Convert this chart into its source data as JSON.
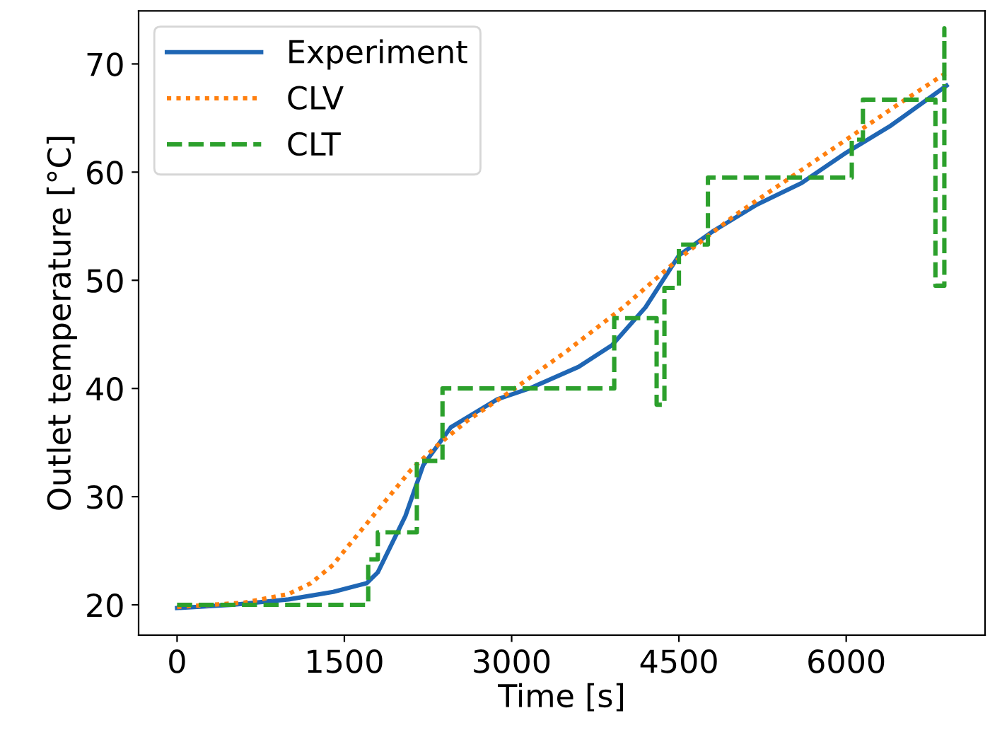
{
  "chart_data": {
    "type": "line",
    "xlabel": "Time [s]",
    "ylabel": "Outlet temperature [°C]",
    "xlim": [
      -345,
      7245
    ],
    "ylim": [
      17.2,
      74.9
    ],
    "xticks": [
      0,
      1500,
      3000,
      4500,
      6000
    ],
    "yticks": [
      20,
      30,
      40,
      50,
      60,
      70
    ],
    "grid": false,
    "legend": "top left",
    "series": [
      {
        "name": "Experiment",
        "color": "#1f66b4",
        "line_style": "solid",
        "x": [
          0,
          500,
          1000,
          1400,
          1700,
          1800,
          2047,
          2207,
          2454,
          2873,
          3160,
          3600,
          3900,
          4200,
          4500,
          4800,
          5200,
          5600,
          6000,
          6400,
          6900
        ],
        "values": [
          19.7,
          20.0,
          20.5,
          21.2,
          22,
          23,
          28.2,
          32.9,
          36.4,
          39,
          40,
          42,
          44,
          47.5,
          52.3,
          54.5,
          57,
          59,
          61.8,
          64.3,
          68
        ]
      },
      {
        "name": "CLV",
        "color": "#ff7f0e",
        "line_style": "dotted",
        "x": [
          0,
          600,
          1000,
          1200,
          1400,
          1500,
          1700,
          1900,
          2100,
          2330,
          2600,
          3000,
          3500,
          4000,
          4500,
          5000,
          5500,
          6000,
          6500,
          6900
        ],
        "values": [
          19.8,
          20.2,
          21,
          22,
          23.7,
          25,
          27.5,
          30,
          32.5,
          34.7,
          37,
          39.8,
          43.5,
          47.5,
          52,
          56,
          59.5,
          63,
          66.5,
          69.2
        ]
      },
      {
        "name": "CLT",
        "color": "#2ca02c",
        "line_style": "dashed",
        "x": [
          0,
          1714,
          1714,
          1800,
          1800,
          2150,
          2150,
          2380,
          2380,
          3920,
          3920,
          4300,
          4300,
          4370,
          4370,
          4500,
          4500,
          4760,
          4760,
          6050,
          6050,
          6150,
          6150,
          6800,
          6800,
          6880,
          6880,
          6880
        ],
        "values": [
          20,
          20,
          24.2,
          24.2,
          26.7,
          26.7,
          33.3,
          33.3,
          40,
          40,
          46.5,
          46.5,
          38.5,
          38.5,
          49.3,
          49.3,
          53.3,
          53.3,
          59.5,
          59.5,
          63,
          63,
          66.7,
          66.7,
          49.5,
          49.5,
          73.3,
          68
        ]
      }
    ]
  }
}
